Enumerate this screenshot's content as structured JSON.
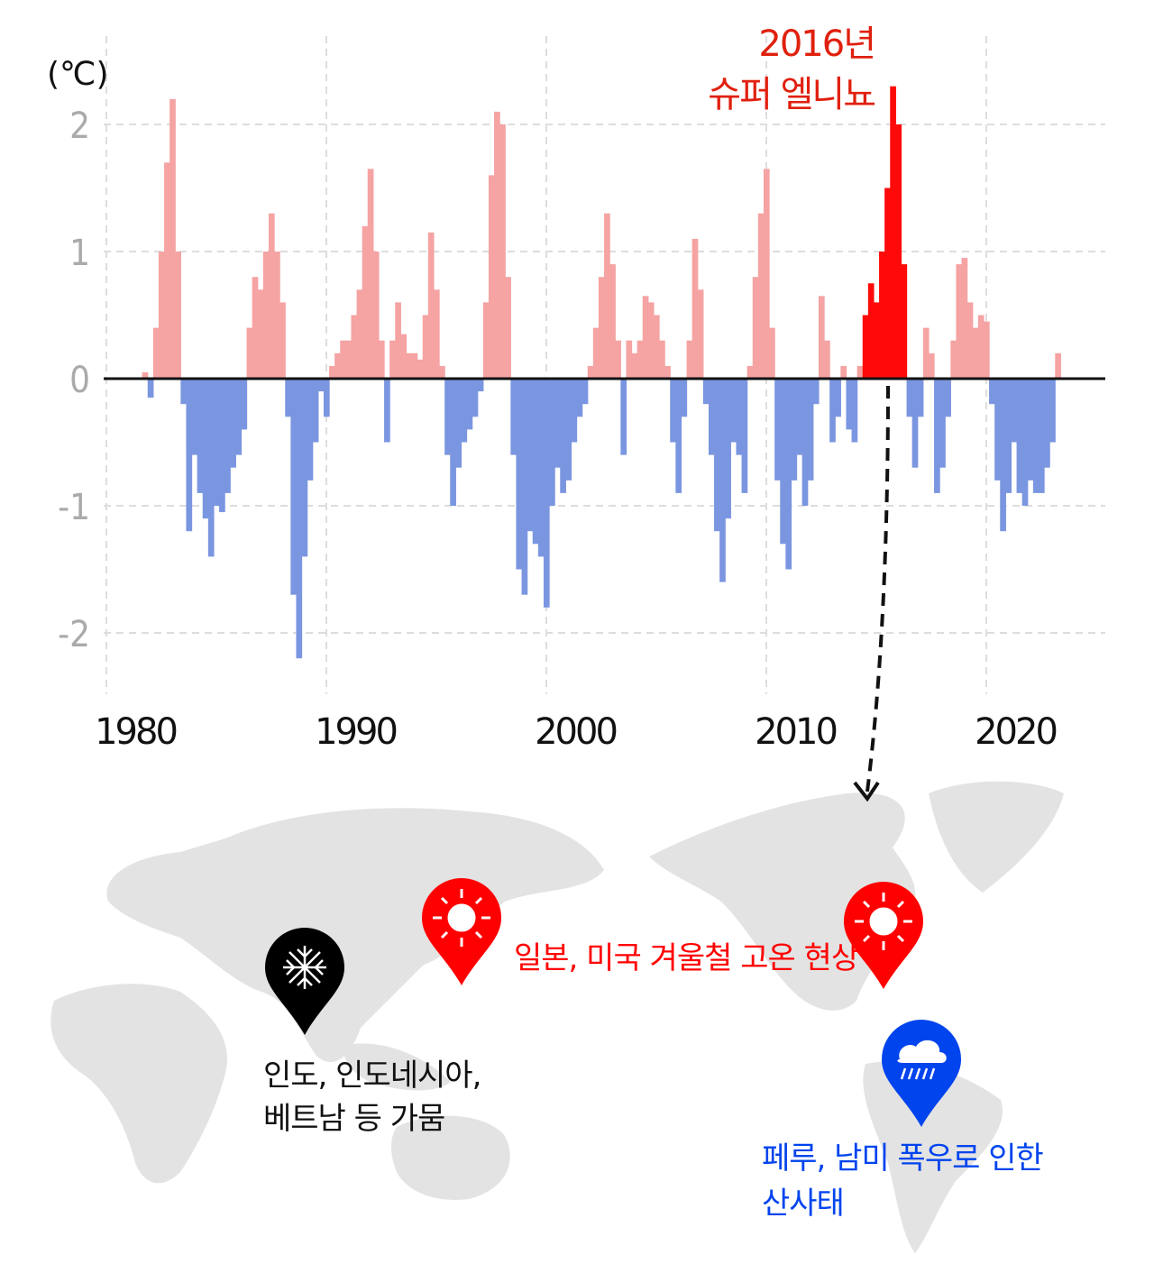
{
  "chart_data": {
    "type": "bar",
    "unit_label": "(℃)",
    "xlim": [
      1980,
      2025.5
    ],
    "ylim": [
      -2.5,
      2.7
    ],
    "x_ticks": [
      "1980",
      "1990",
      "2000",
      "2010",
      "2020"
    ],
    "y_ticks": [
      "2",
      "1",
      "0",
      "-1",
      "-2"
    ],
    "grid": true,
    "colors": {
      "positive": "#f5a3a3",
      "negative": "#7b96e0",
      "highlight": "#ff0a0a"
    },
    "highlight_range": [
      2014.4,
      2016.4
    ],
    "annotation": {
      "line1": "2016년",
      "line2": "슈퍼 엘니뇨",
      "color": "#e0200e"
    },
    "points": [
      [
        1981.75,
        0.05
      ],
      [
        1982.0,
        -0.15
      ],
      [
        1982.25,
        0.4
      ],
      [
        1982.5,
        1.0
      ],
      [
        1982.75,
        1.7
      ],
      [
        1983.0,
        2.2
      ],
      [
        1983.25,
        1.0
      ],
      [
        1983.5,
        -0.2
      ],
      [
        1983.75,
        -1.2
      ],
      [
        1984.0,
        -0.6
      ],
      [
        1984.25,
        -0.9
      ],
      [
        1984.5,
        -1.1
      ],
      [
        1984.75,
        -1.4
      ],
      [
        1985.0,
        -1.0
      ],
      [
        1985.25,
        -1.05
      ],
      [
        1985.5,
        -0.9
      ],
      [
        1985.75,
        -0.7
      ],
      [
        1986.0,
        -0.6
      ],
      [
        1986.25,
        -0.4
      ],
      [
        1986.5,
        0.4
      ],
      [
        1986.75,
        0.8
      ],
      [
        1987.0,
        0.7
      ],
      [
        1987.25,
        1.0
      ],
      [
        1987.5,
        1.3
      ],
      [
        1987.75,
        1.0
      ],
      [
        1988.0,
        0.6
      ],
      [
        1988.25,
        -0.3
      ],
      [
        1988.5,
        -1.7
      ],
      [
        1988.75,
        -2.2
      ],
      [
        1989.0,
        -1.4
      ],
      [
        1989.25,
        -0.8
      ],
      [
        1989.5,
        -0.5
      ],
      [
        1989.75,
        -0.1
      ],
      [
        1990.0,
        -0.3
      ],
      [
        1990.25,
        0.1
      ],
      [
        1990.5,
        0.2
      ],
      [
        1990.75,
        0.3
      ],
      [
        1991.0,
        0.3
      ],
      [
        1991.25,
        0.5
      ],
      [
        1991.5,
        0.7
      ],
      [
        1991.75,
        1.2
      ],
      [
        1992.0,
        1.65
      ],
      [
        1992.25,
        1.0
      ],
      [
        1992.5,
        0.3
      ],
      [
        1992.75,
        -0.5
      ],
      [
        1993.0,
        0.3
      ],
      [
        1993.25,
        0.6
      ],
      [
        1993.5,
        0.35
      ],
      [
        1993.75,
        0.2
      ],
      [
        1994.0,
        0.2
      ],
      [
        1994.25,
        0.15
      ],
      [
        1994.5,
        0.5
      ],
      [
        1994.75,
        1.15
      ],
      [
        1995.0,
        0.7
      ],
      [
        1995.25,
        0.1
      ],
      [
        1995.5,
        -0.6
      ],
      [
        1995.75,
        -1.0
      ],
      [
        1996.0,
        -0.7
      ],
      [
        1996.25,
        -0.5
      ],
      [
        1996.5,
        -0.4
      ],
      [
        1996.75,
        -0.3
      ],
      [
        1997.0,
        -0.1
      ],
      [
        1997.25,
        0.6
      ],
      [
        1997.5,
        1.6
      ],
      [
        1997.75,
        2.1
      ],
      [
        1998.0,
        2.0
      ],
      [
        1998.25,
        0.8
      ],
      [
        1998.5,
        -0.6
      ],
      [
        1998.75,
        -1.5
      ],
      [
        1999.0,
        -1.7
      ],
      [
        1999.25,
        -1.2
      ],
      [
        1999.5,
        -1.3
      ],
      [
        1999.75,
        -1.4
      ],
      [
        2000.0,
        -1.8
      ],
      [
        2000.25,
        -1.0
      ],
      [
        2000.5,
        -0.7
      ],
      [
        2000.75,
        -0.9
      ],
      [
        2001.0,
        -0.8
      ],
      [
        2001.25,
        -0.5
      ],
      [
        2001.5,
        -0.3
      ],
      [
        2001.75,
        -0.2
      ],
      [
        2002.0,
        0.1
      ],
      [
        2002.25,
        0.4
      ],
      [
        2002.5,
        0.8
      ],
      [
        2002.75,
        1.3
      ],
      [
        2003.0,
        0.9
      ],
      [
        2003.25,
        0.3
      ],
      [
        2003.5,
        -0.6
      ],
      [
        2003.75,
        0.3
      ],
      [
        2004.0,
        0.2
      ],
      [
        2004.25,
        0.3
      ],
      [
        2004.5,
        0.65
      ],
      [
        2004.75,
        0.6
      ],
      [
        2005.0,
        0.5
      ],
      [
        2005.25,
        0.3
      ],
      [
        2005.5,
        0.1
      ],
      [
        2005.75,
        -0.5
      ],
      [
        2006.0,
        -0.9
      ],
      [
        2006.25,
        -0.3
      ],
      [
        2006.5,
        0.3
      ],
      [
        2006.75,
        1.1
      ],
      [
        2007.0,
        0.7
      ],
      [
        2007.25,
        -0.2
      ],
      [
        2007.5,
        -0.6
      ],
      [
        2007.75,
        -1.2
      ],
      [
        2008.0,
        -1.6
      ],
      [
        2008.25,
        -1.1
      ],
      [
        2008.5,
        -0.5
      ],
      [
        2008.75,
        -0.6
      ],
      [
        2009.0,
        -0.9
      ],
      [
        2009.25,
        0.1
      ],
      [
        2009.5,
        0.8
      ],
      [
        2009.75,
        1.3
      ],
      [
        2010.0,
        1.65
      ],
      [
        2010.25,
        0.4
      ],
      [
        2010.5,
        -0.8
      ],
      [
        2010.75,
        -1.3
      ],
      [
        2011.0,
        -1.5
      ],
      [
        2011.25,
        -0.8
      ],
      [
        2011.5,
        -0.6
      ],
      [
        2011.75,
        -1.0
      ],
      [
        2012.0,
        -0.8
      ],
      [
        2012.25,
        -0.2
      ],
      [
        2012.5,
        0.65
      ],
      [
        2012.75,
        0.3
      ],
      [
        2013.0,
        -0.5
      ],
      [
        2013.25,
        -0.3
      ],
      [
        2013.5,
        0.1
      ],
      [
        2013.75,
        -0.4
      ],
      [
        2014.0,
        -0.5
      ],
      [
        2014.25,
        0.1
      ],
      [
        2014.5,
        0.5
      ],
      [
        2014.75,
        0.75
      ],
      [
        2015.0,
        0.6
      ],
      [
        2015.25,
        1.0
      ],
      [
        2015.5,
        1.5
      ],
      [
        2015.75,
        2.3
      ],
      [
        2016.0,
        2.0
      ],
      [
        2016.25,
        0.9
      ],
      [
        2016.5,
        -0.3
      ],
      [
        2016.75,
        -0.7
      ],
      [
        2017.0,
        -0.3
      ],
      [
        2017.25,
        0.4
      ],
      [
        2017.5,
        0.2
      ],
      [
        2017.75,
        -0.9
      ],
      [
        2018.0,
        -0.7
      ],
      [
        2018.25,
        -0.3
      ],
      [
        2018.5,
        0.3
      ],
      [
        2018.75,
        0.9
      ],
      [
        2019.0,
        0.95
      ],
      [
        2019.25,
        0.6
      ],
      [
        2019.5,
        0.4
      ],
      [
        2019.75,
        0.5
      ],
      [
        2020.0,
        0.45
      ],
      [
        2020.25,
        -0.2
      ],
      [
        2020.5,
        -0.8
      ],
      [
        2020.75,
        -1.2
      ],
      [
        2021.0,
        -0.9
      ],
      [
        2021.25,
        -0.5
      ],
      [
        2021.5,
        -0.9
      ],
      [
        2021.75,
        -1.0
      ],
      [
        2022.0,
        -0.8
      ],
      [
        2022.25,
        -0.9
      ],
      [
        2022.5,
        -0.9
      ],
      [
        2022.75,
        -0.7
      ],
      [
        2023.0,
        -0.5
      ],
      [
        2023.25,
        0.2
      ]
    ]
  },
  "map": {
    "land_color": "#e3e3e3",
    "markers": [
      {
        "icon": "sun-icon",
        "color": "#ff0000"
      },
      {
        "icon": "sun-icon",
        "color": "#ff0000"
      },
      {
        "icon": "snowflake-drought-icon",
        "color": "#000000"
      },
      {
        "icon": "rain-cloud-icon",
        "color": "#0044ee"
      }
    ],
    "labels": {
      "japan_us": "일본, 미국 겨울철 고온 현상",
      "asia_line1": "인도, 인도네시아,",
      "asia_line2": "베트남 등 가뭄",
      "peru_line1": "페루, 남미 폭우로 인한",
      "peru_line2": "산사태"
    }
  }
}
